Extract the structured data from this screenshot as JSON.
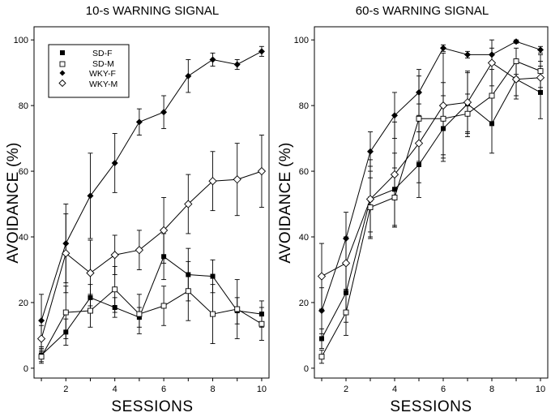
{
  "chart_data": [
    {
      "type": "line",
      "title": "10-s WARNING SIGNAL",
      "xlabel": "SESSIONS",
      "ylabel": "AVOIDANCE (%)",
      "xlim": [
        0.7,
        10.3
      ],
      "ylim": [
        -3,
        104
      ],
      "xticks": [
        2,
        4,
        6,
        8,
        10
      ],
      "yticks": [
        0,
        20,
        40,
        60,
        80,
        100
      ],
      "legend": "top-left",
      "x": [
        1,
        2,
        3,
        4,
        5,
        6,
        7,
        8,
        9,
        10
      ],
      "series": [
        {
          "name": "SD-F",
          "marker": "square-filled",
          "values": [
            4,
            11,
            21.5,
            18.5,
            15.5,
            34,
            28.5,
            28,
            17.5,
            16.5
          ],
          "errors": [
            2,
            4,
            4,
            3,
            3,
            7,
            8,
            5,
            4,
            4
          ]
        },
        {
          "name": "SD-M",
          "marker": "square-open",
          "values": [
            3.5,
            17,
            17.5,
            24,
            16.5,
            19,
            23.5,
            16.5,
            18,
            13.5
          ],
          "errors": [
            2,
            8,
            5,
            7,
            6,
            6,
            9,
            9,
            9,
            5
          ]
        },
        {
          "name": "WKY-F",
          "marker": "diamond-filled",
          "values": [
            14.5,
            38,
            52.5,
            62.5,
            75,
            78,
            89,
            94,
            92.5,
            96.5
          ],
          "errors": [
            8,
            12,
            13,
            9,
            4,
            5,
            5,
            2,
            1.5,
            1.5
          ]
        },
        {
          "name": "WKY-M",
          "marker": "diamond-open",
          "values": [
            9,
            35,
            29,
            34.5,
            36,
            42,
            50,
            57,
            57.5,
            60
          ],
          "errors": [
            4,
            12,
            10,
            6,
            6,
            10,
            9,
            9,
            11,
            11
          ]
        }
      ]
    },
    {
      "type": "line",
      "title": "60-s WARNING SIGNAL",
      "xlabel": "SESSIONS",
      "ylabel": "AVOIDANCE (%)",
      "xlim": [
        0.7,
        10.3
      ],
      "ylim": [
        -3,
        104
      ],
      "xticks": [
        2,
        4,
        6,
        8,
        10
      ],
      "yticks": [
        0,
        20,
        40,
        60,
        80,
        100
      ],
      "legend": "none",
      "x": [
        1,
        2,
        3,
        4,
        5,
        6,
        7,
        8,
        9,
        10
      ],
      "series": [
        {
          "name": "SD-F",
          "marker": "square-filled",
          "values": [
            9,
            23,
            51.5,
            54.5,
            62,
            73,
            80.5,
            74.5,
            88,
            84
          ],
          "errors": [
            3,
            9,
            10,
            11,
            10,
            10,
            10,
            9,
            6,
            8
          ]
        },
        {
          "name": "SD-M",
          "marker": "square-open",
          "values": [
            3.5,
            17,
            49,
            52,
            76,
            76,
            77.5,
            83,
            93.5,
            90.5
          ],
          "errors": [
            2,
            7,
            9,
            9,
            13,
            11,
            6,
            8,
            4,
            5
          ]
        },
        {
          "name": "WKY-F",
          "marker": "diamond-filled",
          "values": [
            17.5,
            39.5,
            66,
            77,
            84,
            97.5,
            95.5,
            95.5,
            99.5,
            97
          ],
          "errors": [
            7,
            8,
            6,
            7,
            7,
            1,
            1,
            2,
            0.5,
            1
          ]
        },
        {
          "name": "WKY-M",
          "marker": "diamond-open",
          "values": [
            28,
            32,
            51.5,
            59,
            68.5,
            80,
            81,
            93,
            88,
            88.5
          ],
          "errors": [
            10,
            8,
            12,
            16,
            12,
            16,
            9,
            7,
            5,
            5
          ]
        }
      ]
    }
  ]
}
